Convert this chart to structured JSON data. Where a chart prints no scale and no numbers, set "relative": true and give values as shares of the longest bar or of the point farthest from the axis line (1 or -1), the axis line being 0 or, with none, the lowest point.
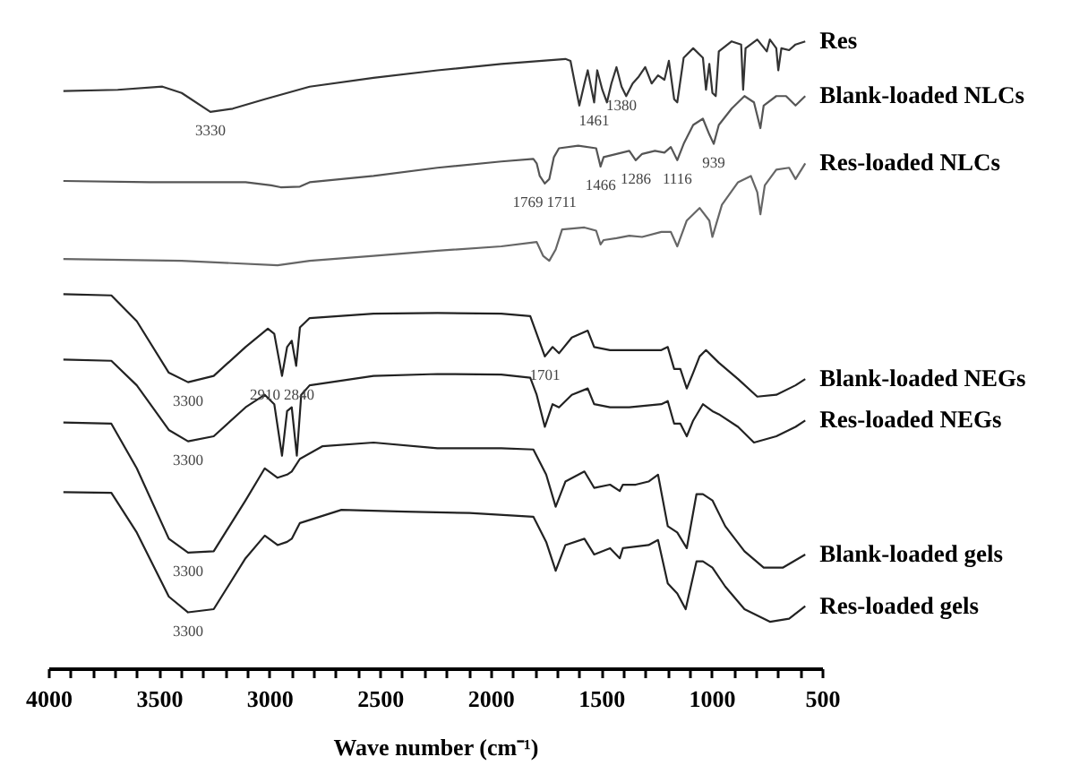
{
  "chart_data": {
    "type": "line",
    "relative": true,
    "xlabel": "Wave number (cm⁻¹)",
    "xlim": [
      4000,
      500
    ],
    "xticks": [
      4000,
      {
        "value": 3900,
        "label": null
      },
      {
        "value": 3800,
        "label": null
      },
      {
        "value": 3700,
        "label": null
      },
      {
        "value": 3600,
        "label": null
      },
      3500,
      {
        "value": 3400,
        "label": null
      },
      {
        "value": 3300,
        "label": null
      },
      {
        "value": 3200,
        "label": null
      },
      {
        "value": 3100,
        "label": null
      },
      3000,
      {
        "value": 2900,
        "label": null
      },
      {
        "value": 2800,
        "label": null
      },
      {
        "value": 2700,
        "label": null
      },
      {
        "value": 2600,
        "label": null
      },
      2500,
      {
        "value": 2400,
        "label": null
      },
      {
        "value": 2300,
        "label": null
      },
      {
        "value": 2200,
        "label": null
      },
      {
        "value": 2100,
        "label": null
      },
      2000,
      {
        "value": 1900,
        "label": null
      },
      {
        "value": 1800,
        "label": null
      },
      {
        "value": 1700,
        "label": null
      },
      {
        "value": 1600,
        "label": null
      },
      1500,
      {
        "value": 1400,
        "label": null
      },
      {
        "value": 1300,
        "label": null
      },
      {
        "value": 1200,
        "label": null
      },
      {
        "value": 1100,
        "label": null
      },
      1000,
      {
        "value": 900,
        "label": null
      },
      {
        "value": 800,
        "label": null
      },
      {
        "value": 700,
        "label": null
      },
      {
        "value": 600,
        "label": null
      },
      500
    ],
    "series": [
      {
        "name": "Res",
        "color": "#333333",
        "x": [
          3932,
          3686,
          3484,
          3397,
          3267,
          3166,
          3021,
          2818,
          2529,
          2240,
          1951,
          1661,
          1638,
          1618,
          1598,
          1575,
          1560,
          1531,
          1517,
          1494,
          1473,
          1453,
          1430,
          1407,
          1386,
          1357,
          1329,
          1300,
          1271,
          1242,
          1213,
          1193,
          1169,
          1155,
          1126,
          1083,
          1039,
          1025,
          1010,
          996,
          981,
          967,
          909,
          866,
          857,
          846,
          793,
          750,
          736,
          707,
          698,
          684,
          649,
          620,
          576
        ],
        "values": [
          0.918,
          0.92,
          0.925,
          0.915,
          0.885,
          0.89,
          0.905,
          0.925,
          0.939,
          0.951,
          0.961,
          0.969,
          0.966,
          0.93,
          0.895,
          0.93,
          0.951,
          0.9,
          0.951,
          0.92,
          0.9,
          0.93,
          0.956,
          0.925,
          0.91,
          0.93,
          0.941,
          0.956,
          0.93,
          0.943,
          0.936,
          0.966,
          0.905,
          0.9,
          0.971,
          0.986,
          0.971,
          0.92,
          0.961,
          0.915,
          0.91,
          0.981,
          0.997,
          0.992,
          0.92,
          0.986,
          1.0,
          0.981,
          1.0,
          0.986,
          0.951,
          0.986,
          0.983,
          0.992,
          0.997
        ]
      },
      {
        "name": "Blank-loaded NLCs",
        "color": "#555555",
        "x": [
          3932,
          3542,
          3108,
          2992,
          2949,
          2862,
          2818,
          2529,
          2240,
          1951,
          1806,
          1791,
          1777,
          1754,
          1734,
          1713,
          1690,
          1603,
          1522,
          1502,
          1488,
          1430,
          1372,
          1343,
          1314,
          1256,
          1213,
          1184,
          1155,
          1126,
          1083,
          1039,
          1010,
          990,
          967,
          909,
          851,
          808,
          779,
          764,
          707,
          663,
          620,
          576
        ],
        "values": [
          0.775,
          0.773,
          0.773,
          0.768,
          0.765,
          0.766,
          0.773,
          0.783,
          0.796,
          0.806,
          0.81,
          0.803,
          0.783,
          0.771,
          0.778,
          0.813,
          0.827,
          0.831,
          0.827,
          0.798,
          0.813,
          0.818,
          0.823,
          0.808,
          0.818,
          0.823,
          0.82,
          0.829,
          0.808,
          0.834,
          0.864,
          0.874,
          0.849,
          0.834,
          0.864,
          0.89,
          0.91,
          0.9,
          0.859,
          0.895,
          0.91,
          0.91,
          0.895,
          0.91
        ]
      },
      {
        "name": "Res-loaded NLCs",
        "color": "#666666",
        "x": [
          3932,
          3397,
          2963,
          2818,
          2529,
          2240,
          1951,
          1791,
          1762,
          1734,
          1705,
          1676,
          1575,
          1522,
          1502,
          1488,
          1430,
          1372,
          1314,
          1227,
          1184,
          1155,
          1112,
          1054,
          1010,
          996,
          953,
          880,
          822,
          793,
          779,
          759,
          707,
          649,
          620,
          576
        ],
        "values": [
          0.651,
          0.648,
          0.641,
          0.648,
          0.656,
          0.664,
          0.671,
          0.678,
          0.656,
          0.648,
          0.666,
          0.698,
          0.701,
          0.696,
          0.674,
          0.681,
          0.684,
          0.688,
          0.686,
          0.694,
          0.694,
          0.671,
          0.712,
          0.732,
          0.712,
          0.686,
          0.737,
          0.773,
          0.783,
          0.757,
          0.722,
          0.768,
          0.793,
          0.796,
          0.778,
          0.803
        ]
      },
      {
        "name": "Blank-loaded NEGs",
        "color": "#222222",
        "x": [
          3932,
          3715,
          3600,
          3455,
          3368,
          3252,
          3108,
          3007,
          2978,
          2943,
          2920,
          2899,
          2879,
          2862,
          2818,
          2529,
          2240,
          1951,
          1820,
          1791,
          1754,
          1719,
          1690,
          1632,
          1560,
          1531,
          1459,
          1372,
          1227,
          1198,
          1169,
          1141,
          1112,
          1083,
          1054,
          1025,
          996,
          967,
          880,
          793,
          707,
          620,
          576
        ],
        "values": [
          0.595,
          0.593,
          0.552,
          0.47,
          0.455,
          0.465,
          0.511,
          0.54,
          0.532,
          0.465,
          0.511,
          0.521,
          0.481,
          0.542,
          0.557,
          0.564,
          0.565,
          0.564,
          0.56,
          0.532,
          0.496,
          0.511,
          0.501,
          0.526,
          0.537,
          0.511,
          0.506,
          0.506,
          0.506,
          0.511,
          0.476,
          0.476,
          0.445,
          0.47,
          0.496,
          0.506,
          0.496,
          0.486,
          0.46,
          0.432,
          0.435,
          0.45,
          0.46
        ]
      },
      {
        "name": "Res-loaded NEGs",
        "color": "#222222",
        "x": [
          3932,
          3715,
          3600,
          3455,
          3368,
          3252,
          3108,
          3021,
          2978,
          2943,
          2920,
          2899,
          2876,
          2856,
          2818,
          2529,
          2240,
          1951,
          1820,
          1791,
          1754,
          1719,
          1690,
          1632,
          1560,
          1531,
          1459,
          1372,
          1227,
          1198,
          1169,
          1141,
          1112,
          1083,
          1039,
          996,
          967,
          880,
          808,
          707,
          620,
          576
        ],
        "values": [
          0.491,
          0.489,
          0.45,
          0.379,
          0.361,
          0.369,
          0.415,
          0.435,
          0.42,
          0.338,
          0.409,
          0.415,
          0.338,
          0.435,
          0.45,
          0.465,
          0.468,
          0.467,
          0.462,
          0.435,
          0.384,
          0.42,
          0.415,
          0.435,
          0.445,
          0.42,
          0.415,
          0.415,
          0.42,
          0.425,
          0.389,
          0.389,
          0.369,
          0.394,
          0.42,
          0.409,
          0.404,
          0.384,
          0.359,
          0.369,
          0.384,
          0.394
        ]
      },
      {
        "name": "Blank-loaded gels",
        "color": "#222222",
        "x": [
          3932,
          3715,
          3600,
          3455,
          3368,
          3252,
          3108,
          3021,
          2963,
          2920,
          2899,
          2862,
          2761,
          2529,
          2240,
          1951,
          1806,
          1748,
          1705,
          1661,
          1575,
          1531,
          1459,
          1415,
          1401,
          1343,
          1285,
          1242,
          1198,
          1155,
          1112,
          1068,
          1039,
          996,
          938,
          851,
          764,
          678,
          576
        ],
        "values": [
          0.391,
          0.389,
          0.318,
          0.206,
          0.184,
          0.186,
          0.267,
          0.318,
          0.303,
          0.308,
          0.313,
          0.333,
          0.353,
          0.359,
          0.35,
          0.35,
          0.348,
          0.308,
          0.257,
          0.297,
          0.313,
          0.287,
          0.292,
          0.282,
          0.292,
          0.292,
          0.297,
          0.308,
          0.226,
          0.216,
          0.191,
          0.277,
          0.277,
          0.267,
          0.226,
          0.186,
          0.16,
          0.16,
          0.181
        ]
      },
      {
        "name": "Res-loaded gels",
        "color": "#222222",
        "x": [
          3932,
          3715,
          3600,
          3455,
          3368,
          3252,
          3108,
          3021,
          2963,
          2920,
          2899,
          2862,
          2674,
          2385,
          2095,
          1806,
          1748,
          1705,
          1661,
          1575,
          1531,
          1459,
          1415,
          1401,
          1285,
          1242,
          1198,
          1155,
          1117,
          1068,
          1039,
          996,
          938,
          851,
          736,
          649,
          576
        ],
        "values": [
          0.28,
          0.279,
          0.216,
          0.114,
          0.089,
          0.094,
          0.175,
          0.211,
          0.196,
          0.201,
          0.206,
          0.231,
          0.252,
          0.249,
          0.247,
          0.241,
          0.201,
          0.155,
          0.196,
          0.206,
          0.181,
          0.191,
          0.175,
          0.191,
          0.196,
          0.204,
          0.135,
          0.119,
          0.094,
          0.17,
          0.17,
          0.16,
          0.13,
          0.094,
          0.074,
          0.079,
          0.099
        ]
      }
    ],
    "annotations": [
      {
        "text": "3330",
        "x": 3267,
        "y": 0.885
      },
      {
        "text": "1461",
        "x": 1531,
        "y": 0.9
      },
      {
        "text": "1380",
        "x": 1407,
        "y": 0.925
      },
      {
        "text": "1769",
        "x": 1754,
        "y": 0.771
      },
      {
        "text": "1711",
        "x": 1754,
        "y": 0.771
      },
      {
        "text": "1466",
        "x": 1502,
        "y": 0.798
      },
      {
        "text": "1286",
        "x": 1343,
        "y": 0.808
      },
      {
        "text": "1116",
        "x": 1155,
        "y": 0.808
      },
      {
        "text": "939",
        "x": 990,
        "y": 0.834
      },
      {
        "text": "3300",
        "x": 3368,
        "y": 0.455
      },
      {
        "text": "2910",
        "x": 2943,
        "y": 0.465
      },
      {
        "text": "2840",
        "x": 2943,
        "y": 0.465
      },
      {
        "text": "1701",
        "x": 1754,
        "y": 0.496
      },
      {
        "text": "3300",
        "x": 3368,
        "y": 0.361
      },
      {
        "text": "3300",
        "x": 3368,
        "y": 0.184
      },
      {
        "text": "3300",
        "x": 3368,
        "y": 0.089
      }
    ]
  }
}
